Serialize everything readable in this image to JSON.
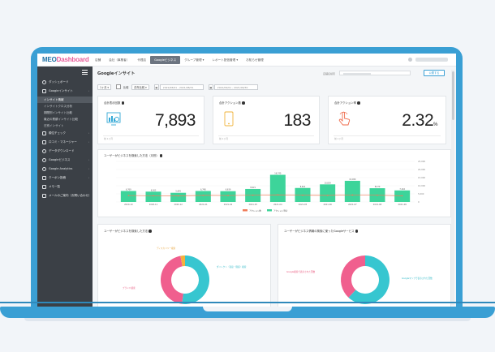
{
  "nav": {
    "logo_main": "MEO",
    "logo_accent": "Dashboard",
    "items": [
      "店舗",
      "会社（事業者）",
      "代理店",
      "Googleビジネス",
      "グループ管理 ▾",
      "レポート配信管理 ▾",
      "お知らせ管理"
    ],
    "active_index": 3
  },
  "sidebar": {
    "items": [
      {
        "label": "ダッシュボード",
        "icon": "clock-icon"
      },
      {
        "label": "Googleインサイト",
        "icon": "bar-chart-icon"
      },
      {
        "label": "インサイト情報",
        "sub": true,
        "selected": true
      },
      {
        "label": "インサイトクロス分析",
        "sub": true
      },
      {
        "label": "期間別インサイト比較",
        "sub": true
      },
      {
        "label": "最近の業績インサイト比較",
        "sub": true
      },
      {
        "label": "日別インサイト",
        "sub": true
      },
      {
        "label": "順位チェック",
        "icon": "trend-icon"
      },
      {
        "label": "口コミ・マネージャー",
        "icon": "calendar-icon"
      },
      {
        "label": "データダウンロード",
        "icon": "download-icon"
      },
      {
        "label": "Googleビジネス",
        "icon": "google-icon"
      },
      {
        "label": "Google Analytics",
        "icon": "analytics-icon"
      },
      {
        "label": "クーポン投稿",
        "icon": "tag-icon"
      },
      {
        "label": "メモ一覧",
        "icon": "memo-icon"
      },
      {
        "label": "メールのご案内（お問い合わせ）",
        "icon": "mail-icon"
      }
    ]
  },
  "page": {
    "title": "Googleインサイト",
    "search_label": "店舗名検索",
    "publish_label": "公開する"
  },
  "filters": {
    "period": "1ヶ月 ▾",
    "compare_label": "比較",
    "compare_select": "前年比較 ▾",
    "date_from": "2021/08/01 - 2021/08/31",
    "date_to": "2021/09/01 - 2021/09/30"
  },
  "kpis": [
    {
      "title": "合計表示回数",
      "value": "7,893",
      "footer": "前 1ヶ月",
      "icon": "monitor-icon"
    },
    {
      "title": "合計アクション数",
      "value": "183",
      "footer": "前 1ヶ月",
      "icon": "phone-icon"
    },
    {
      "title": "合計アクション率",
      "value": "2.32",
      "unit": "%",
      "footer": "前 1ヶ月",
      "icon": "tap-icon"
    }
  ],
  "chart_data": {
    "type": "bar",
    "title": "ユーザーがビジネスを検索した方法（月別）",
    "categories": [
      "2020-10",
      "2020-11",
      "2020-12",
      "2021-01",
      "2021-02",
      "2021-03",
      "2021-04",
      "2021-05",
      "2021-06",
      "2021-07",
      "2021-08",
      "2021-09"
    ],
    "series": [
      {
        "name": "アクション数",
        "type": "line",
        "color": "#f07c5a",
        "values": [
          190,
          185,
          180,
          195,
          190,
          200,
          210,
          200,
          195,
          205,
          200,
          183
        ]
      },
      {
        "name": "アクション割合",
        "type": "bar",
        "color": "#3dd49a",
        "values": [
          6769,
          6363,
          5645,
          6748,
          6639,
          8021,
          16740,
          8621,
          10839,
          13030,
          8470,
          7116
        ]
      }
    ],
    "ylim": [
      0,
      25000
    ],
    "yticks": [
      "0",
      "5,000",
      "10,000",
      "15,000",
      "20,000",
      "25,000"
    ]
  },
  "donuts": [
    {
      "title": "ユーザーがビジネスを検索した方法",
      "labels": [
        {
          "text": "ディスカバリー検索",
          "color": "#e8a33c"
        },
        {
          "text": "ダイレクト（直接・間接）検索",
          "color": "#2fb8c6"
        },
        {
          "text": "ブランド検索",
          "color": "#e8537a"
        }
      ],
      "slices": [
        {
          "value": 52,
          "color": "#37c6d0"
        },
        {
          "value": 45,
          "color": "#f05f8e"
        },
        {
          "value": 3,
          "color": "#f4b13d"
        }
      ]
    },
    {
      "title": "ユーザーがビジネス情報の検索に使ったGoogleサービス",
      "labels": [
        {
          "text": "Google検索で表示された回数",
          "color": "#e8537a"
        },
        {
          "text": "Googleマップで表示された回数",
          "color": "#2fb8c6"
        }
      ],
      "slices": [
        {
          "value": 62,
          "color": "#37c6d0"
        },
        {
          "value": 38,
          "color": "#f05f8e"
        }
      ]
    }
  ]
}
